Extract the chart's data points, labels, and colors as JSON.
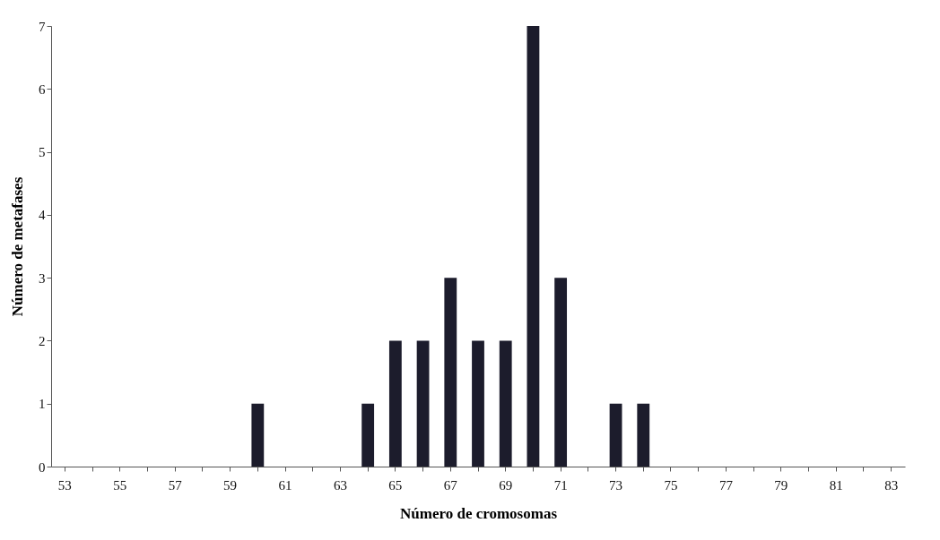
{
  "chart_data": {
    "type": "bar",
    "xlabel": "Número de cromosomas",
    "ylabel": "Número de metafases",
    "categories": [
      "53",
      null,
      "55",
      null,
      "57",
      null,
      "59",
      null,
      "61",
      null,
      "63",
      null,
      "65",
      null,
      "67",
      null,
      "69",
      null,
      "71",
      null,
      "73",
      null,
      "75",
      null,
      "77",
      null,
      "79",
      null,
      "81",
      null,
      "83"
    ],
    "values": [
      0,
      0,
      0,
      0,
      0,
      0,
      0,
      1,
      0,
      0,
      0,
      1,
      2,
      2,
      3,
      2,
      2,
      7,
      3,
      0,
      1,
      1,
      0,
      0,
      0,
      0,
      0,
      0,
      0,
      0,
      0
    ],
    "color": "#1c1c2c",
    "ylim": [
      0,
      7
    ],
    "yticks": [
      0,
      1,
      2,
      3,
      4,
      5,
      6,
      7
    ],
    "grid": false
  }
}
